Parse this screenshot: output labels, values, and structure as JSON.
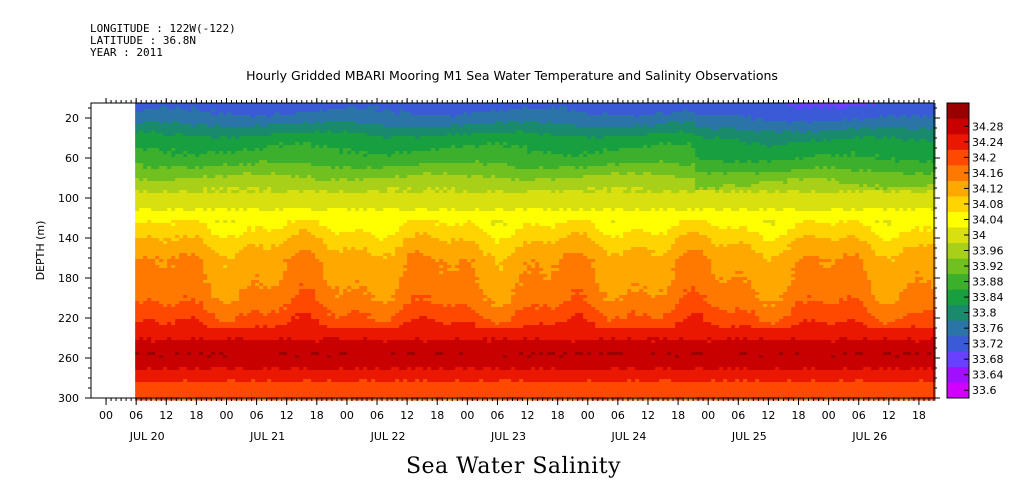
{
  "header": {
    "longitude": "LONGITUDE : 122W(-122)",
    "latitude": "LATITUDE : 36.8N",
    "year": "YEAR : 2011",
    "title": "Hourly Gridded MBARI Mooring M1 Sea Water Temperature and Salinity Observations"
  },
  "caption": "Sea Water Salinity",
  "chart_data": {
    "type": "heatmap",
    "title": "Hourly Gridded MBARI Mooring M1 Sea Water Temperature and Salinity Observations",
    "xlabel": "",
    "ylabel": "DEPTH (m)",
    "variable": "Sea Water Salinity",
    "y_inverted": true,
    "ylim": [
      300,
      5
    ],
    "y_ticks": [
      20,
      60,
      100,
      140,
      180,
      220,
      260,
      300
    ],
    "x_hour_ticks": [
      "00",
      "06",
      "12",
      "18",
      "00",
      "06",
      "12",
      "18",
      "00",
      "06",
      "12",
      "18",
      "00",
      "06",
      "12",
      "18",
      "00",
      "06",
      "12",
      "18",
      "00",
      "06",
      "12",
      "18",
      "00",
      "06",
      "12",
      "18"
    ],
    "x_day_labels": [
      "JUL 20",
      "JUL 21",
      "JUL 22",
      "JUL 23",
      "JUL 24",
      "JUL 25",
      "JUL 26"
    ],
    "data_start": "JUL 20 06",
    "colorbar": {
      "levels": [
        33.6,
        33.64,
        33.68,
        33.72,
        33.76,
        33.8,
        33.84,
        33.88,
        33.92,
        33.96,
        34,
        34.04,
        34.08,
        34.12,
        34.16,
        34.2,
        34.24,
        34.28
      ],
      "colors": [
        "#d200ff",
        "#a010ff",
        "#6a40ff",
        "#3a5ad8",
        "#2a74a8",
        "#1a8a6c",
        "#18a040",
        "#3cb02c",
        "#70c020",
        "#a8d018",
        "#d8e010",
        "#ffff00",
        "#ffd400",
        "#ffa800",
        "#ff7800",
        "#ff4800",
        "#ea1800",
        "#c80000",
        "#9a0000"
      ]
    },
    "profile": [
      {
        "depth": 5,
        "value": 33.7
      },
      {
        "depth": 20,
        "value": 33.74
      },
      {
        "depth": 40,
        "value": 33.82
      },
      {
        "depth": 60,
        "value": 33.86
      },
      {
        "depth": 80,
        "value": 33.93
      },
      {
        "depth": 100,
        "value": 33.98
      },
      {
        "depth": 120,
        "value": 34.02
      },
      {
        "depth": 140,
        "value": 34.07
      },
      {
        "depth": 160,
        "value": 34.11
      },
      {
        "depth": 180,
        "value": 34.12
      },
      {
        "depth": 200,
        "value": 34.14
      },
      {
        "depth": 220,
        "value": 34.18
      },
      {
        "depth": 240,
        "value": 34.24
      },
      {
        "depth": 255,
        "value": 34.28
      },
      {
        "depth": 270,
        "value": 34.24
      },
      {
        "depth": 285,
        "value": 34.19
      },
      {
        "depth": 300,
        "value": 34.16
      }
    ]
  }
}
